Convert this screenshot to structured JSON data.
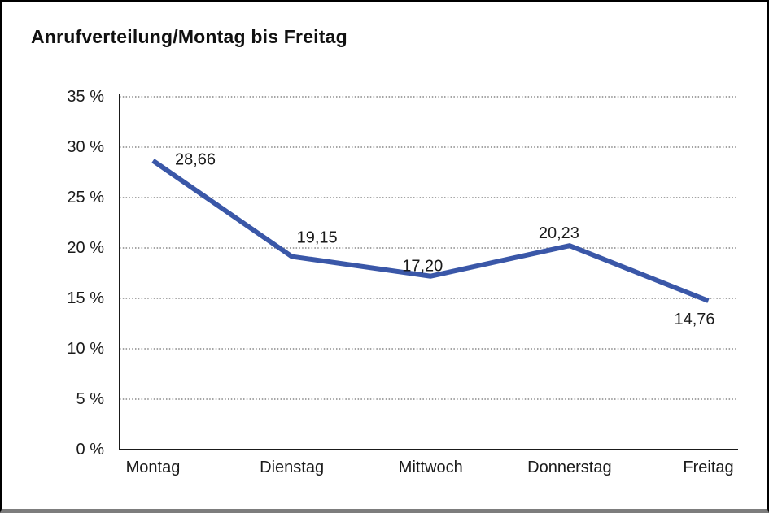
{
  "title": "Anrufverteilung/Montag bis Freitag",
  "colors": {
    "line": "#3A57A8",
    "grid_dotted": "#6e6e6e",
    "axis": "#1a1a1a",
    "frame_border": "#000000",
    "bottom_bar": "#7d7d7d",
    "text": "#1a1a1a",
    "background": "#ffffff"
  },
  "chart_data": {
    "type": "line",
    "title": "Anrufverteilung/Montag bis Freitag",
    "categories": [
      "Montag",
      "Dienstag",
      "Mittwoch",
      "Donnerstag",
      "Freitag"
    ],
    "series": [
      {
        "name": "Anrufverteilung",
        "values": [
          28.66,
          19.15,
          17.2,
          20.23,
          14.76
        ]
      }
    ],
    "point_labels": [
      "28,66",
      "19,15",
      "17,20",
      "20,23",
      "14,76"
    ],
    "y_ticks": [
      {
        "value": 35,
        "label": "35 %"
      },
      {
        "value": 30,
        "label": "30 %"
      },
      {
        "value": 25,
        "label": "25 %"
      },
      {
        "value": 20,
        "label": "20 %"
      },
      {
        "value": 15,
        "label": "15 %"
      },
      {
        "value": 10,
        "label": "10 %"
      },
      {
        "value": 5,
        "label": "5 %"
      },
      {
        "value": 0,
        "label": "0 %"
      }
    ],
    "ylim": [
      0,
      35
    ],
    "xlabel": "",
    "ylabel": "",
    "grid": "horizontal-dotted",
    "legend": "none"
  }
}
